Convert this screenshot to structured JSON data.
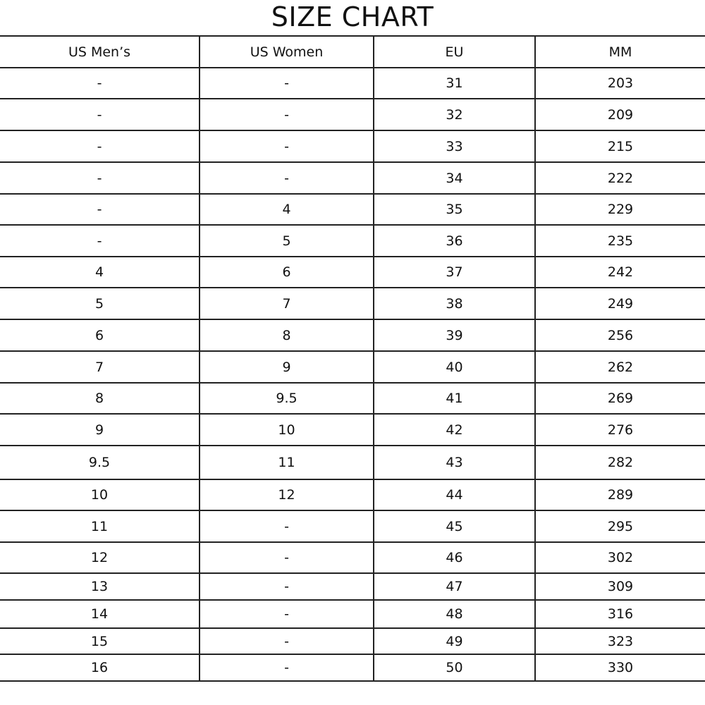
{
  "title": "SIZE CHART",
  "headers": [
    "US Men’s",
    "US Women",
    "EU",
    "MM"
  ],
  "rows": [
    [
      "-",
      "-",
      "31",
      "203"
    ],
    [
      "-",
      "-",
      "32",
      "209"
    ],
    [
      "-",
      "-",
      "33",
      "215"
    ],
    [
      "-",
      "-",
      "34",
      "222"
    ],
    [
      "-",
      "4",
      "35",
      "229"
    ],
    [
      "-",
      "5",
      "36",
      "235"
    ],
    [
      "4",
      "6",
      "37",
      "242"
    ],
    [
      "5",
      "7",
      "38",
      "249"
    ],
    [
      "6",
      "8",
      "39",
      "256"
    ],
    [
      "7",
      "9",
      "40",
      "262"
    ],
    [
      "8",
      "9.5",
      "41",
      "269"
    ],
    [
      "9",
      "10",
      "42",
      "276"
    ],
    [
      "9.5",
      "11",
      "43",
      "282"
    ],
    [
      "10",
      "12",
      "44",
      "289"
    ],
    [
      "11",
      "-",
      "45",
      "295"
    ],
    [
      "12",
      "-",
      "46",
      "302"
    ],
    [
      "13",
      "-",
      "47",
      "309"
    ],
    [
      "14",
      "-",
      "48",
      "316"
    ],
    [
      "15",
      "-",
      "49",
      "323"
    ],
    [
      "16",
      "-",
      "50",
      "330"
    ]
  ]
}
